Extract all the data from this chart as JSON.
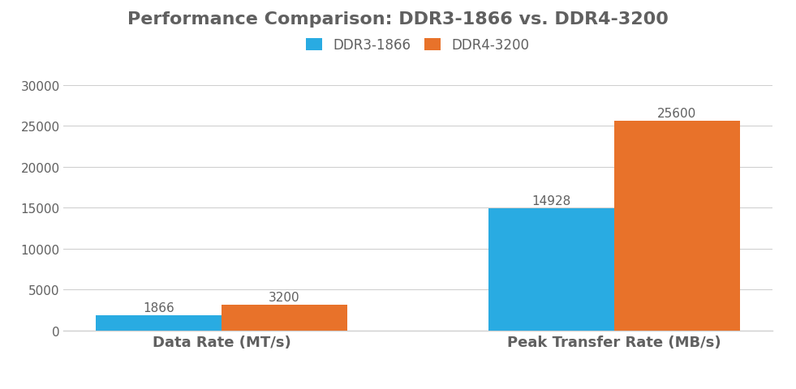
{
  "title": "Performance Comparison: DDR3-1866 vs. DDR4-3200",
  "categories": [
    "Data Rate (MT/s)",
    "Peak Transfer Rate (MB/s)"
  ],
  "ddr3_values": [
    1866,
    14928
  ],
  "ddr4_values": [
    3200,
    25600
  ],
  "ddr3_color": "#29ABE2",
  "ddr4_color": "#E8722A",
  "ddr3_label": "DDR3-1866",
  "ddr4_label": "DDR4-3200",
  "ylim": [
    0,
    30000
  ],
  "yticks": [
    0,
    5000,
    10000,
    15000,
    20000,
    25000,
    30000
  ],
  "bar_width": 0.32,
  "title_fontsize": 16,
  "xlabel_fontsize": 13,
  "tick_fontsize": 11,
  "annotation_fontsize": 11,
  "legend_fontsize": 12,
  "background_color": "#ffffff",
  "grid_color": "#d0d0d0",
  "text_color": "#606060"
}
